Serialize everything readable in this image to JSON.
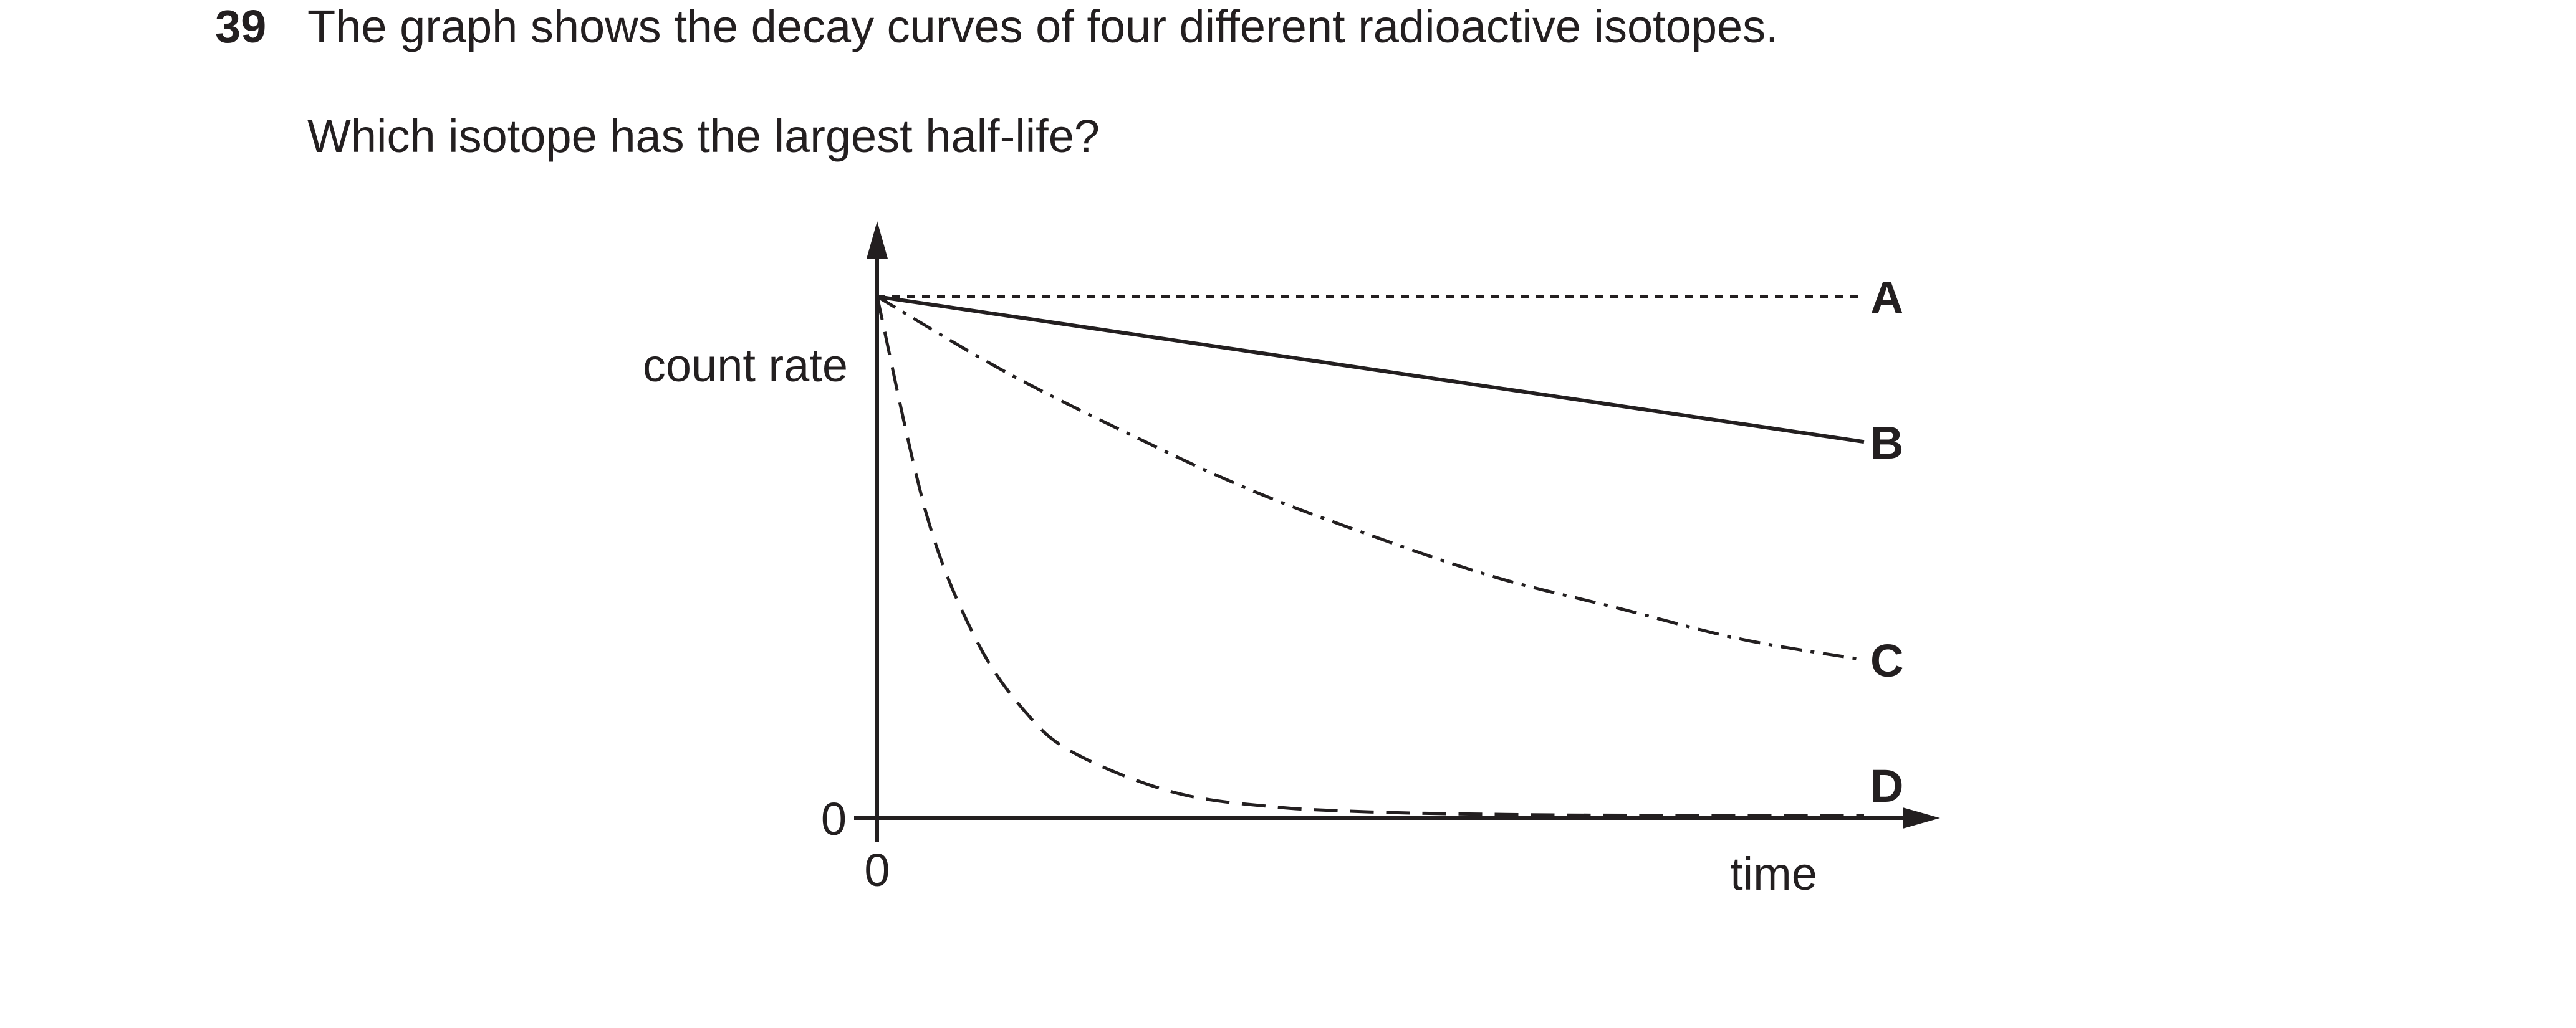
{
  "question": {
    "number": "39",
    "text": "The graph shows the decay curves of four different radioactive isotopes.",
    "prompt": "Which isotope has the largest half-life?"
  },
  "chart_data": {
    "type": "line",
    "xlabel": "time",
    "ylabel": "count rate",
    "x_origin_label": "0",
    "y_origin_label": "0",
    "grid": false,
    "series": [
      {
        "name": "A",
        "style": "short-dashed",
        "x": [
          0,
          1
        ],
        "y": [
          1.0,
          1.0
        ]
      },
      {
        "name": "B",
        "style": "solid",
        "x": [
          0,
          1
        ],
        "y": [
          1.0,
          0.72
        ]
      },
      {
        "name": "C",
        "style": "dash-dot",
        "x": [
          0,
          0.125,
          0.25,
          0.375,
          0.5,
          0.625,
          0.75,
          0.875,
          1
        ],
        "y": [
          1.0,
          0.86,
          0.74,
          0.63,
          0.54,
          0.46,
          0.4,
          0.34,
          0.3
        ]
      },
      {
        "name": "D",
        "style": "long-dashed",
        "x": [
          0,
          0.05,
          0.1,
          0.15,
          0.2,
          0.3,
          0.4,
          0.5,
          0.6,
          0.7,
          0.8,
          1
        ],
        "y": [
          1.0,
          0.58,
          0.34,
          0.2,
          0.12,
          0.045,
          0.017,
          0.007,
          0.003,
          0.001,
          0.0005,
          0.0
        ]
      }
    ]
  }
}
